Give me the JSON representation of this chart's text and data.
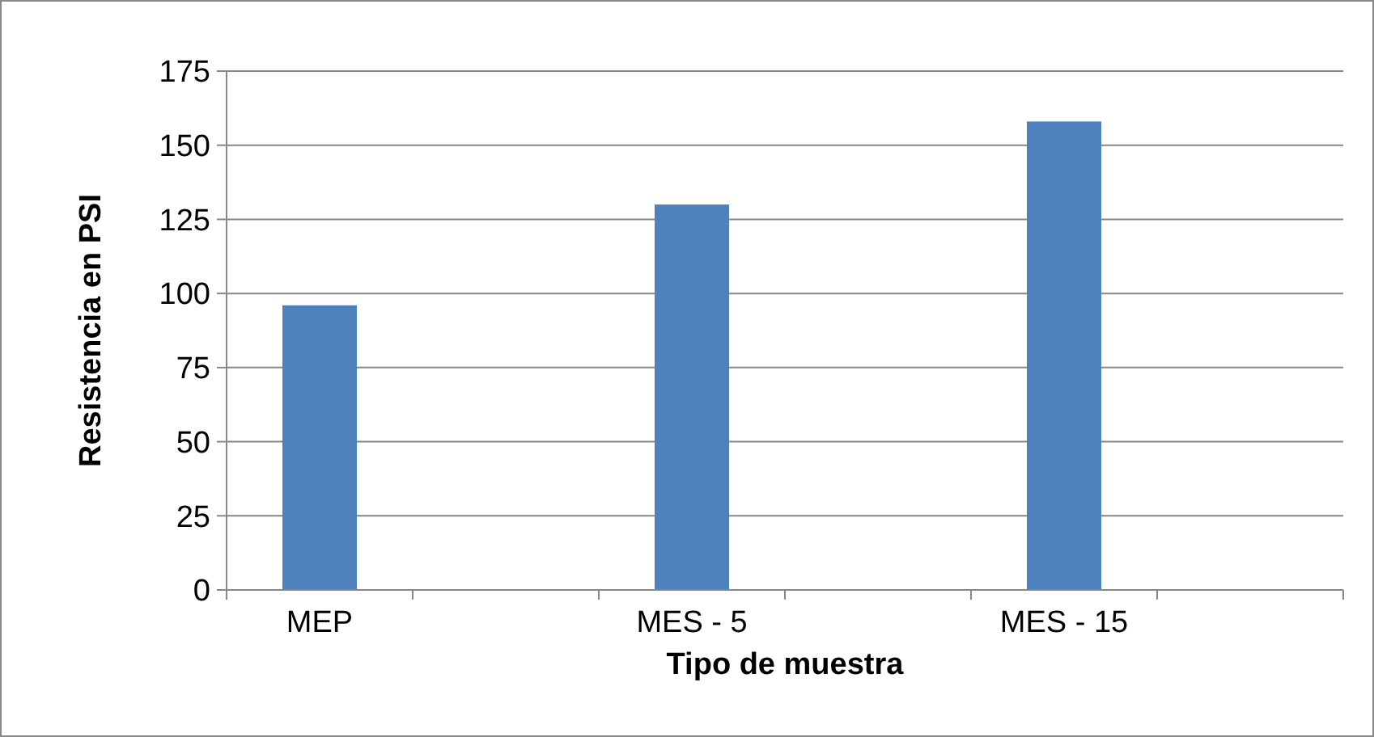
{
  "chart_data": {
    "type": "bar",
    "xlabel": "Tipo de muestra",
    "ylabel": "Resistencia en PSI",
    "categories": [
      "MEP",
      null,
      "MES - 5",
      null,
      "MES - 15",
      null
    ],
    "values": [
      96,
      null,
      130,
      null,
      158,
      null
    ],
    "color": "#4f81bd",
    "ylim": [
      0,
      175
    ],
    "yticks": [
      0,
      25,
      50,
      75,
      100,
      125,
      150,
      175
    ],
    "grid": "y"
  }
}
